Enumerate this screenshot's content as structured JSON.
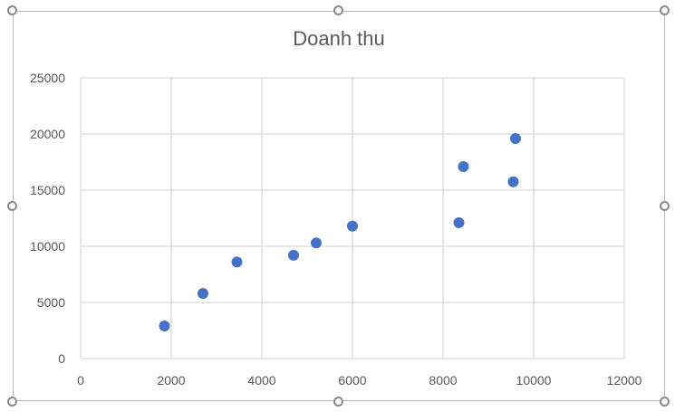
{
  "chart_data": {
    "type": "scatter",
    "title": "Doanh thu",
    "xlabel": "",
    "ylabel": "",
    "xlim": [
      0,
      12000
    ],
    "ylim": [
      0,
      25000
    ],
    "x_ticks": [
      "0",
      "2000",
      "4000",
      "6000",
      "8000",
      "10000",
      "12000"
    ],
    "y_ticks": [
      "0",
      "5000",
      "10000",
      "15000",
      "20000",
      "25000"
    ],
    "grid": true,
    "legend": "none",
    "marker_color": "#4472c4",
    "series": [
      {
        "points": [
          {
            "x": 1850,
            "y": 2900
          },
          {
            "x": 2700,
            "y": 5800
          },
          {
            "x": 3450,
            "y": 8600
          },
          {
            "x": 4700,
            "y": 9200
          },
          {
            "x": 5200,
            "y": 10300
          },
          {
            "x": 6000,
            "y": 11800
          },
          {
            "x": 8350,
            "y": 12100
          },
          {
            "x": 8450,
            "y": 17100
          },
          {
            "x": 9550,
            "y": 15750
          },
          {
            "x": 9600,
            "y": 19600
          }
        ]
      }
    ]
  }
}
